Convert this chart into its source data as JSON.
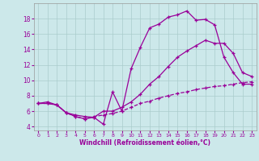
{
  "xlabel": "Windchill (Refroidissement éolien,°C)",
  "background_color": "#cce8ea",
  "grid_color": "#aacccc",
  "line_color": "#990099",
  "xlim": [
    -0.5,
    23.5
  ],
  "ylim": [
    3.5,
    20.0
  ],
  "yticks": [
    4,
    6,
    8,
    10,
    12,
    14,
    16,
    18
  ],
  "xticks": [
    0,
    1,
    2,
    3,
    4,
    5,
    6,
    7,
    8,
    9,
    10,
    11,
    12,
    13,
    14,
    15,
    16,
    17,
    18,
    19,
    20,
    21,
    22,
    23
  ],
  "line_jagged_x": [
    0,
    1,
    2,
    3,
    4,
    5,
    6,
    7,
    8,
    9,
    10,
    11,
    12,
    13,
    14,
    15,
    16,
    17,
    18,
    19,
    20,
    21,
    22,
    23
  ],
  "line_jagged_y": [
    7.0,
    7.2,
    6.8,
    5.8,
    5.5,
    5.3,
    5.2,
    4.3,
    8.5,
    6.0,
    11.5,
    14.3,
    16.8,
    17.3,
    18.2,
    18.5,
    19.0,
    17.8,
    17.9,
    17.2,
    13.0,
    11.0,
    9.5,
    9.5
  ],
  "line_mid_x": [
    0,
    1,
    2,
    3,
    4,
    5,
    6,
    7,
    8,
    9,
    10,
    11,
    12,
    13,
    14,
    15,
    16,
    17,
    18,
    19,
    20,
    21,
    22,
    23
  ],
  "line_mid_y": [
    7.0,
    7.0,
    6.8,
    5.8,
    5.3,
    5.0,
    5.2,
    6.0,
    6.0,
    6.5,
    7.2,
    8.2,
    9.5,
    10.5,
    11.8,
    13.0,
    13.8,
    14.5,
    15.2,
    14.8,
    14.8,
    13.5,
    11.0,
    10.5
  ],
  "line_flat_x": [
    0,
    1,
    2,
    3,
    4,
    5,
    6,
    7,
    8,
    9,
    10,
    11,
    12,
    13,
    14,
    15,
    16,
    17,
    18,
    19,
    20,
    21,
    22,
    23
  ],
  "line_flat_y": [
    7.0,
    7.0,
    6.8,
    5.8,
    5.3,
    5.0,
    5.3,
    5.5,
    5.7,
    6.0,
    6.5,
    7.0,
    7.3,
    7.7,
    8.0,
    8.3,
    8.5,
    8.8,
    9.0,
    9.2,
    9.3,
    9.5,
    9.7,
    9.8
  ]
}
